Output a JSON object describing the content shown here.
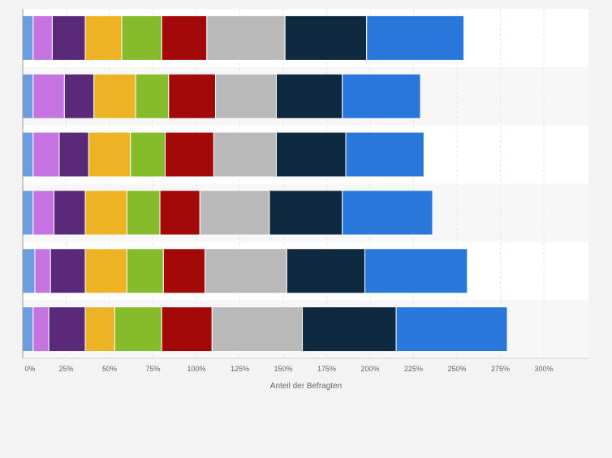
{
  "chart_data": {
    "type": "bar",
    "orientation": "horizontal",
    "stacked": true,
    "title": "",
    "xlabel": "Anteil der Befragten",
    "ylabel": "",
    "xlim": [
      0,
      325
    ],
    "x_ticks": [
      0,
      25,
      50,
      75,
      100,
      125,
      150,
      175,
      200,
      225,
      250,
      275,
      300
    ],
    "x_tick_labels": [
      "0%",
      "25%",
      "50%",
      "75%",
      "100%",
      "125%",
      "150%",
      "175%",
      "200%",
      "225%",
      "250%",
      "275%",
      "300%"
    ],
    "categories": [
      "",
      "",
      "",
      "",
      "",
      ""
    ],
    "legend": "none",
    "grid": "vertical",
    "series": [
      {
        "name": "",
        "color": "#6c9de0",
        "values": [
          6,
          6,
          6,
          6,
          7,
          6
        ]
      },
      {
        "name": "",
        "color": "#c473e0",
        "values": [
          11,
          18,
          15,
          12,
          9,
          9
        ]
      },
      {
        "name": "",
        "color": "#5a2a78",
        "values": [
          19,
          17,
          17,
          18,
          20,
          21
        ]
      },
      {
        "name": "",
        "color": "#ecb325",
        "values": [
          21,
          24,
          24,
          24,
          24,
          17
        ]
      },
      {
        "name": "",
        "color": "#86bc2b",
        "values": [
          23,
          19,
          20,
          19,
          21,
          27
        ]
      },
      {
        "name": "",
        "color": "#a20a0a",
        "values": [
          26,
          27,
          28,
          23,
          24,
          29
        ]
      },
      {
        "name": "",
        "color": "#b9b9b9",
        "values": [
          45,
          35,
          36,
          40,
          47,
          52
        ]
      },
      {
        "name": "",
        "color": "#0f2940",
        "values": [
          47,
          38,
          40,
          42,
          45,
          54
        ]
      },
      {
        "name": "",
        "color": "#2a77dc",
        "values": [
          56,
          45,
          45,
          52,
          59,
          64
        ]
      }
    ]
  }
}
